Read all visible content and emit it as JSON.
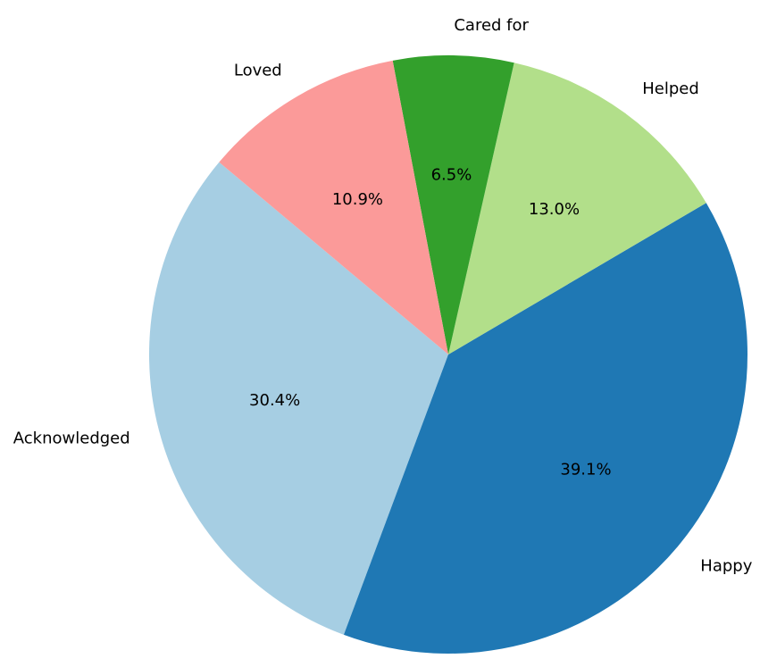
{
  "chart_data": {
    "type": "pie",
    "categories": [
      "Acknowledged",
      "Happy",
      "Helped",
      "Cared for",
      "Loved"
    ],
    "values": [
      30.4,
      39.1,
      13.0,
      6.5,
      10.9
    ],
    "value_labels": [
      "30.4%",
      "39.1%",
      "13.0%",
      "6.5%",
      "10.9%"
    ],
    "colors": [
      "#a6cee3",
      "#1f78b4",
      "#b2df8a",
      "#33a02c",
      "#fb9a99"
    ],
    "start_angle_deg": 140,
    "direction": "counterclockwise",
    "title": "",
    "legend": "none"
  }
}
